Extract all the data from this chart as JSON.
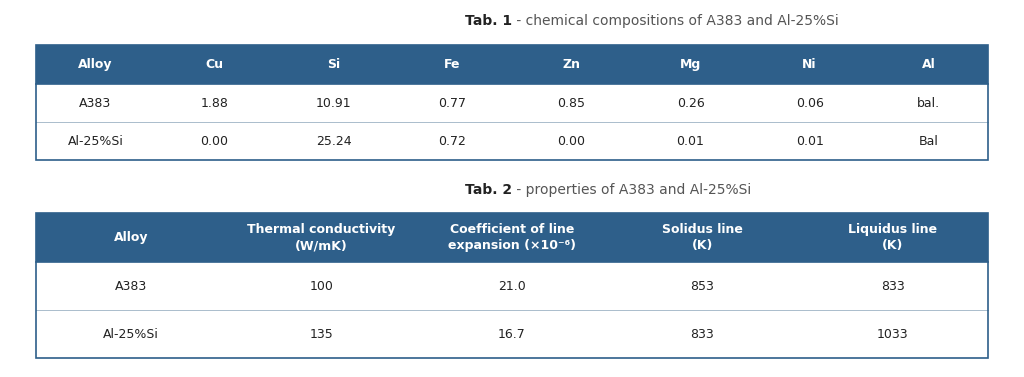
{
  "title1_bold": "Tab. 1",
  "title1_normal": " - chemical compositions of A383 and Al-25%Si",
  "title2_bold": "Tab. 2",
  "title2_normal": " - properties of A383 and Al-25%Si",
  "header_bg": "#2e5f8a",
  "header_text": "#ffffff",
  "divider_color": "#2e5f8a",
  "outer_border_color": "#2e5f8a",
  "row_divider_color": "#aabccc",
  "table1_headers": [
    "Alloy",
    "Cu",
    "Si",
    "Fe",
    "Zn",
    "Mg",
    "Ni",
    "Al"
  ],
  "table1_rows": [
    [
      "A383",
      "1.88",
      "10.91",
      "0.77",
      "0.85",
      "0.26",
      "0.06",
      "bal."
    ],
    [
      "Al-25%Si",
      "0.00",
      "25.24",
      "0.72",
      "0.00",
      "0.01",
      "0.01",
      "Bal"
    ]
  ],
  "table2_headers": [
    "Alloy",
    "Thermal conductivity\n(W/mK)",
    "Coefficient of line\nexpansion (×10⁻⁶)",
    "Solidus line\n(K)",
    "Liquidus line\n(K)"
  ],
  "table2_rows": [
    [
      "A383",
      "100",
      "21.0",
      "853",
      "833"
    ],
    [
      "Al-25%Si",
      "135",
      "16.7",
      "833",
      "1033"
    ]
  ],
  "background_color": "#ffffff",
  "font_size_title": 10,
  "font_size_header": 9,
  "font_size_data": 9
}
